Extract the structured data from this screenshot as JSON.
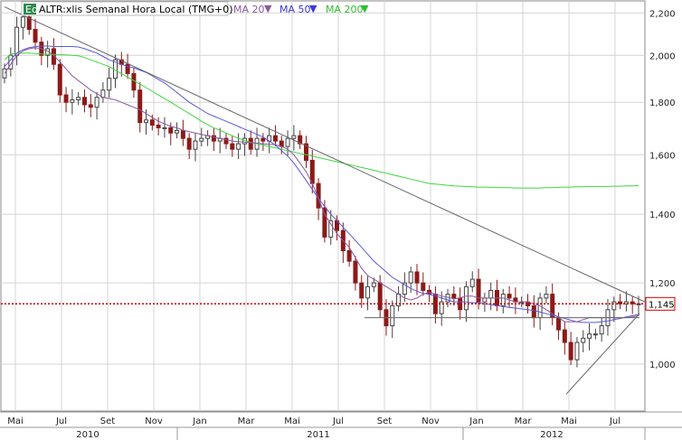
{
  "legend": {
    "badge": "Eq",
    "symbol": "ALTR:xlis Semanal Hora Local (TMG+0)",
    "ma20": "MA 20",
    "ma50": "MA 50",
    "ma200": "MA 200"
  },
  "colors": {
    "up": "#555555",
    "down": "#8b1a1a",
    "ma20": "#8b5a9e",
    "ma50": "#5a5ad8",
    "ma200": "#3fd63f",
    "trendline": "#666666",
    "price_line": "#cc0000",
    "grid": "#d4d4d4",
    "badge": "#2d8a4e"
  },
  "chart_data": {
    "type": "candlestick",
    "title": "ALTR:xlis Semanal Hora Local (TMG+0)",
    "y_scale": "log",
    "ylim": [
      900,
      2260
    ],
    "y_ticks": [
      "2,200",
      "2,000",
      "1,800",
      "1,600",
      "1,400",
      "1,200",
      "1,000"
    ],
    "y_tick_values": [
      2200,
      2000,
      1800,
      1600,
      1400,
      1200,
      1000
    ],
    "x_month_labels": [
      "Mai",
      "Jul",
      "Set",
      "Nov",
      "Jan",
      "Mar",
      "Mai",
      "Jul",
      "Set",
      "Nov",
      "Jan",
      "Mar",
      "Mai",
      "Jul"
    ],
    "x_years": [
      "2010",
      "2011",
      "2012"
    ],
    "current_price": 1145,
    "current_price_label": "1,145",
    "price_series_close": [
      1940,
      2000,
      2130,
      2180,
      2120,
      2060,
      2000,
      2030,
      1960,
      1830,
      1800,
      1810,
      1820,
      1790,
      1780,
      1820,
      1850,
      1900,
      1980,
      1960,
      1920,
      1850,
      1720,
      1730,
      1710,
      1700,
      1700,
      1680,
      1690,
      1660,
      1620,
      1650,
      1660,
      1670,
      1650,
      1660,
      1640,
      1620,
      1640,
      1660,
      1620,
      1660,
      1650,
      1670,
      1650,
      1630,
      1660,
      1670,
      1640,
      1580,
      1500,
      1420,
      1330,
      1380,
      1350,
      1290,
      1260,
      1200,
      1160,
      1190,
      1200,
      1130,
      1090,
      1140,
      1170,
      1200,
      1230,
      1200,
      1180,
      1170,
      1120,
      1150,
      1170,
      1160,
      1130,
      1190,
      1210,
      1150,
      1160,
      1180,
      1140,
      1170,
      1160,
      1150,
      1150,
      1140,
      1110,
      1160,
      1170,
      1110,
      1080,
      1050,
      1010,
      1050,
      1060,
      1070,
      1070,
      1090,
      1130,
      1150,
      1145,
      1150,
      1145,
      1145
    ],
    "ma20": [
      1920,
      1960,
      2000,
      2020,
      2030,
      2035,
      2030,
      2020,
      2000,
      1970,
      1940,
      1910,
      1890,
      1870,
      1850,
      1835,
      1820,
      1815,
      1810,
      1800,
      1790,
      1780,
      1770,
      1755,
      1740,
      1725,
      1715,
      1705,
      1700,
      1690,
      1685,
      1680,
      1675,
      1670,
      1665,
      1660,
      1655,
      1650,
      1648,
      1646,
      1644,
      1642,
      1640,
      1638,
      1636,
      1630,
      1620,
      1600,
      1570,
      1540,
      1500,
      1450,
      1400,
      1370,
      1340,
      1320,
      1300,
      1270,
      1240,
      1220,
      1210,
      1200,
      1190,
      1180,
      1170,
      1160,
      1155,
      1160,
      1170,
      1175,
      1170,
      1165,
      1162,
      1158,
      1160,
      1165,
      1165,
      1160,
      1160,
      1160,
      1160,
      1160,
      1155,
      1150,
      1150,
      1150,
      1145,
      1140,
      1130,
      1120,
      1110,
      1100,
      1100,
      1100,
      1105,
      1110,
      1110,
      1110,
      1110,
      1110,
      1110,
      1110,
      1112,
      1115
    ],
    "ma50": [
      1950,
      1980,
      2010,
      2025,
      2035,
      2040,
      2042,
      2042,
      2040,
      2040,
      2040,
      2040,
      2038,
      2030,
      2020,
      2010,
      1995,
      1980,
      1970,
      1960,
      1950,
      1945,
      1935,
      1925,
      1910,
      1895,
      1880,
      1860,
      1840,
      1820,
      1800,
      1785,
      1770,
      1755,
      1745,
      1735,
      1725,
      1715,
      1705,
      1695,
      1685,
      1675,
      1665,
      1650,
      1635,
      1615,
      1595,
      1570,
      1540,
      1510,
      1480,
      1450,
      1425,
      1400,
      1380,
      1360,
      1340,
      1320,
      1300,
      1280,
      1260,
      1245,
      1230,
      1215,
      1205,
      1195,
      1185,
      1178,
      1172,
      1170,
      1165,
      1160,
      1155,
      1150,
      1150,
      1150,
      1148,
      1148,
      1145,
      1143,
      1140,
      1138,
      1136,
      1134,
      1132,
      1130,
      1128,
      1124,
      1120,
      1116,
      1112,
      1108,
      1104,
      1100,
      1098,
      1098,
      1098,
      1100,
      1102,
      1105,
      1108,
      1112,
      1115,
      1118
    ],
    "ma200": [
      1980,
      2005,
      2010,
      2010,
      2010,
      2008,
      2006,
      2005,
      2004,
      2003,
      2002,
      2000,
      1998,
      1990,
      1980,
      1970,
      1960,
      1950,
      1935,
      1920,
      1905,
      1890,
      1875,
      1860,
      1845,
      1830,
      1815,
      1800,
      1785,
      1770,
      1755,
      1740,
      1725,
      1712,
      1700,
      1690,
      1680,
      1670,
      1660,
      1652,
      1645,
      1640,
      1635,
      1630,
      1625,
      1620,
      1615,
      1610,
      1605,
      1600,
      1595,
      1590,
      1585,
      1580,
      1575,
      1570,
      1565,
      1560,
      1555,
      1550,
      1545,
      1540,
      1535,
      1530,
      1525,
      1520,
      1515,
      1510,
      1505,
      1500,
      1498,
      1496,
      1494,
      1492,
      1491,
      1490,
      1489,
      1488,
      1488,
      1487,
      1487,
      1486,
      1486,
      1485,
      1485,
      1485,
      1485,
      1485,
      1486,
      1486,
      1487,
      1488,
      1488,
      1489,
      1489,
      1490,
      1490,
      1490,
      1490,
      1491,
      1491,
      1492,
      1492,
      1493
    ]
  }
}
